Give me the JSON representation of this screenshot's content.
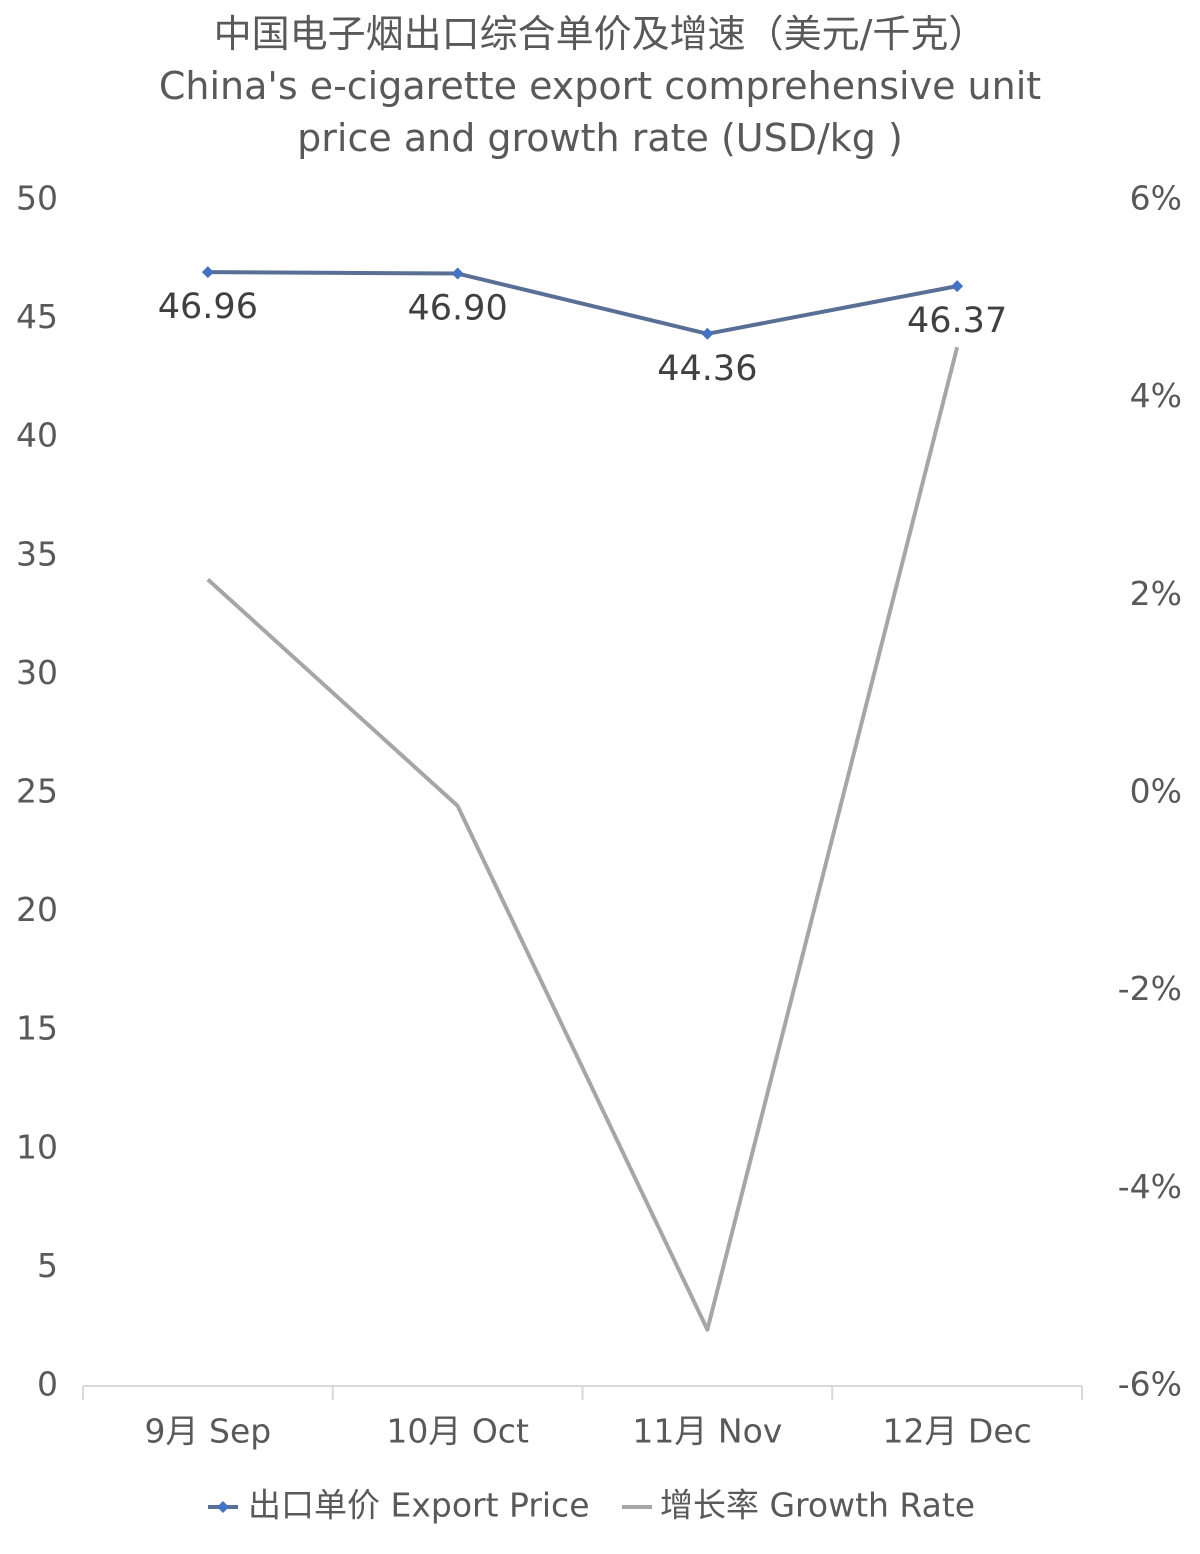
{
  "chart_data": {
    "type": "line",
    "title": "中国电子烟出口综合单价及增速（美元/千克）",
    "subtitle": "China's e-cigarette export comprehensive unit price and growth rate (USD/kg )",
    "categories": [
      "9月 Sep",
      "10月 Oct",
      "11月 Nov",
      "12月 Dec"
    ],
    "series": [
      {
        "name": "出口单价 Export Price",
        "color": "#5a6f95",
        "marker_color": "#4472c4",
        "values": [
          46.96,
          46.9,
          44.36,
          46.37
        ],
        "value_labels": [
          "46.96",
          "46.90",
          "44.36",
          "46.37"
        ]
      },
      {
        "name": "增长率 Growth Rate",
        "color": "#a6a6a6",
        "axis": "y2",
        "values": [
          2.16,
          -0.13,
          -5.43,
          4.51
        ]
      }
    ],
    "ylim": [
      0,
      50
    ],
    "yticks": [
      0,
      5,
      10,
      15,
      20,
      25,
      30,
      35,
      40,
      45,
      50
    ],
    "y2lim": [
      -6,
      6
    ],
    "y2ticks": [
      {
        "value": -6,
        "label": "-6%"
      },
      {
        "value": -4,
        "label": "-4%"
      },
      {
        "value": -2,
        "label": "-2%"
      },
      {
        "value": 0,
        "label": "0%"
      },
      {
        "value": 2,
        "label": "2%"
      },
      {
        "value": 4,
        "label": "4%"
      },
      {
        "value": 6,
        "label": "6%"
      }
    ],
    "grid": false,
    "legend": "bottom"
  }
}
